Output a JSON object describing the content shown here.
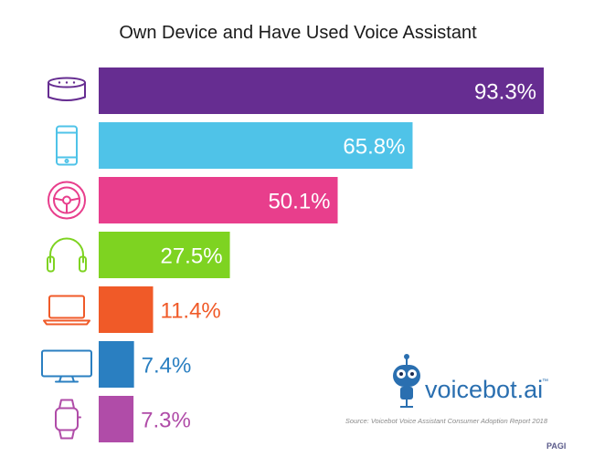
{
  "chart_data": {
    "type": "bar",
    "orientation": "horizontal",
    "title": "Own Device and Have Used Voice Assistant",
    "categories": [
      "Smart Speaker",
      "Smartphone",
      "Car",
      "Headphones",
      "Laptop",
      "TV",
      "Smartwatch"
    ],
    "values": [
      93.3,
      65.8,
      50.1,
      27.5,
      11.4,
      7.4,
      7.3
    ],
    "value_labels": [
      "93.3%",
      "65.8%",
      "50.1%",
      "27.5%",
      "11.4%",
      "7.4%",
      "7.3%"
    ],
    "colors": [
      "#662d91",
      "#4fc3e8",
      "#e83e8c",
      "#7ed321",
      "#f05a28",
      "#2a7fc1",
      "#b04ca8"
    ],
    "icons": [
      "smart-speaker-icon",
      "smartphone-icon",
      "steering-wheel-icon",
      "headphones-icon",
      "laptop-icon",
      "tv-icon",
      "smartwatch-icon"
    ],
    "xlim": [
      0,
      100
    ],
    "xlabel": "",
    "ylabel": ""
  },
  "branding": {
    "logo_text": "voicebot.ai",
    "trademark": "™",
    "source": "Source: Voicebot Voice Assistant Consumer Adoption Report 2018",
    "page_mark": "PAGI"
  }
}
